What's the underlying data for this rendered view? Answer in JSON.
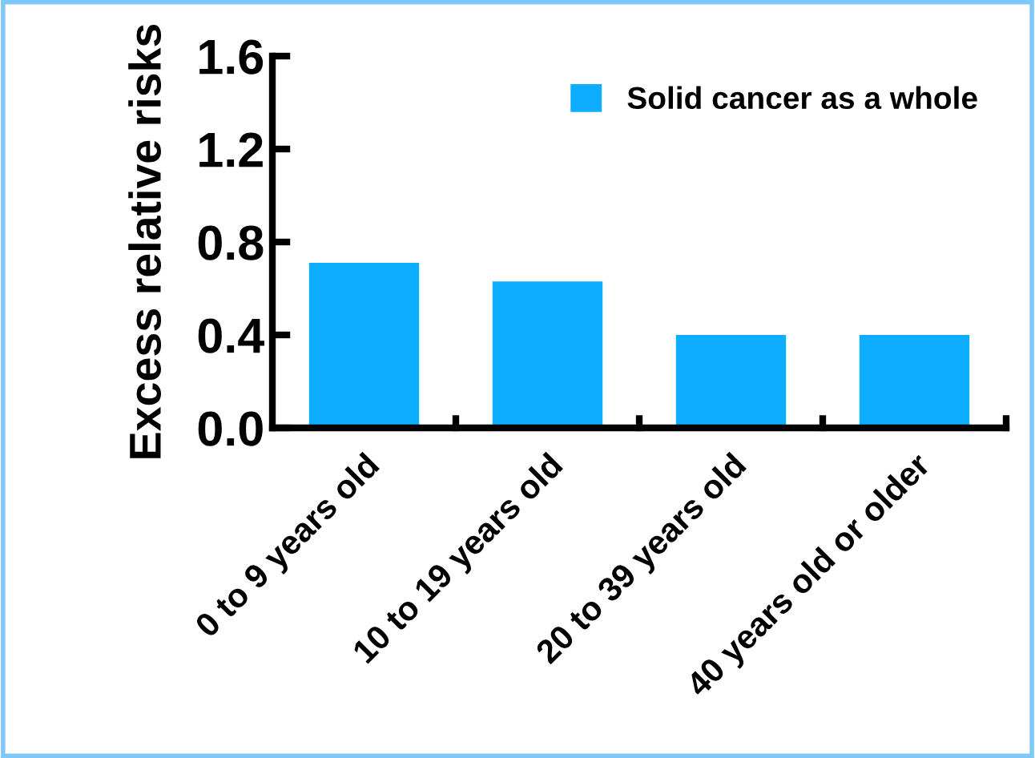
{
  "chart_data": {
    "type": "bar",
    "ylabel": "Excess relative risks",
    "categories": [
      "0 to 9 years old",
      "10 to 19 years old",
      "20 to 39 years old",
      "40 years old or older"
    ],
    "series": [
      {
        "name": "Solid cancer as a whole",
        "color": "#0daeff",
        "values": [
          0.71,
          0.63,
          0.4,
          0.4
        ]
      }
    ],
    "ylim": [
      0,
      1.6
    ],
    "yticks": [
      {
        "value": 0,
        "label": "0.0"
      },
      {
        "value": 0.4,
        "label": "0.4"
      },
      {
        "value": 0.8,
        "label": "0.8"
      },
      {
        "value": 1.2,
        "label": "1.2"
      },
      {
        "value": 1.6,
        "label": "1.6"
      }
    ],
    "grid": false,
    "legend": "top right"
  }
}
